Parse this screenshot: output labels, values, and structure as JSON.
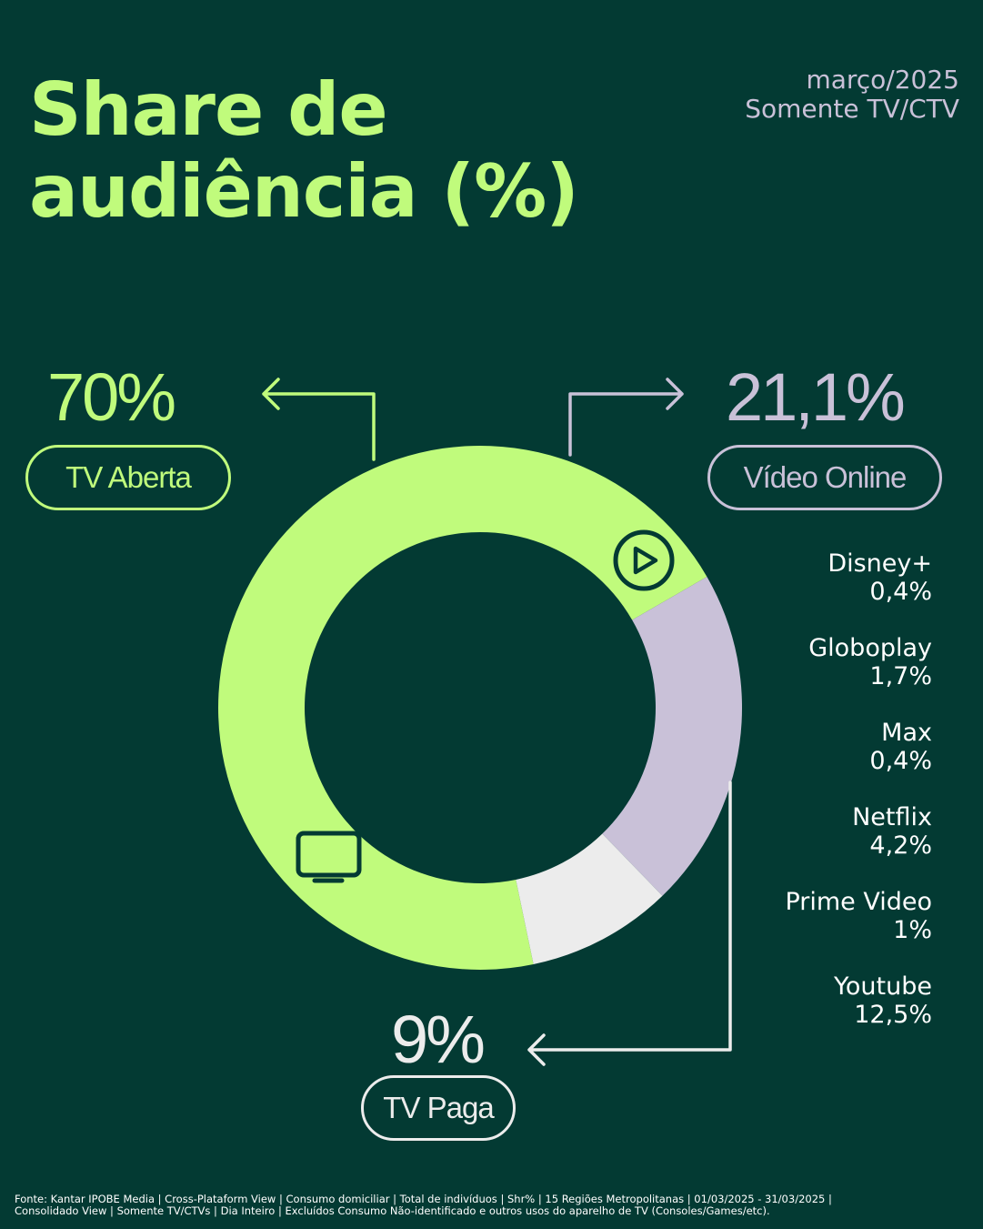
{
  "header": {
    "title_line1": "Share de",
    "title_line2": "audiência (%)",
    "period": "março/2025",
    "scope": "Somente TV/CTV"
  },
  "colors": {
    "background": "#033a33",
    "tv_aberta": "#c0fb7c",
    "video_online": "#c9c1d8",
    "tv_paga": "#ececec"
  },
  "chart_data": {
    "type": "pie",
    "title": "Share de audiência (%)",
    "slices": [
      {
        "label": "TV Aberta",
        "value": 70,
        "value_label": "70%",
        "color": "#c0fb7c",
        "icon": "tv-icon"
      },
      {
        "label": "Vídeo Online",
        "value": 21.1,
        "value_label": "21,1%",
        "color": "#c9c1d8",
        "icon": "play-icon"
      },
      {
        "label": "TV Paga",
        "value": 9,
        "value_label": "9%",
        "color": "#ececec"
      }
    ],
    "video_online_breakdown": [
      {
        "name": "Disney+",
        "value": 0.4,
        "value_label": "0,4%"
      },
      {
        "name": "Globoplay",
        "value": 1.7,
        "value_label": "1,7%"
      },
      {
        "name": "Max",
        "value": 0.4,
        "value_label": "0,4%"
      },
      {
        "name": "Netflix",
        "value": 4.2,
        "value_label": "4,2%"
      },
      {
        "name": "Prime Video",
        "value": 1,
        "value_label": "1%"
      },
      {
        "name": "Youtube",
        "value": 12.5,
        "value_label": "12,5%"
      }
    ]
  },
  "footnote": {
    "line1": "Fonte: Kantar IPOBE Media | Cross-Plataform View | Consumo domiciliar | Total de indivíduos | Shr% | 15 Regiões Metropolitanas | 01/03/2025 - 31/03/2025 |",
    "line2": "Consolidado View | Somente TV/CTVs | Dia Inteiro | Excluídos Consumo Não-identificado e outros usos do aparelho de TV (Consoles/Games/etc)."
  }
}
